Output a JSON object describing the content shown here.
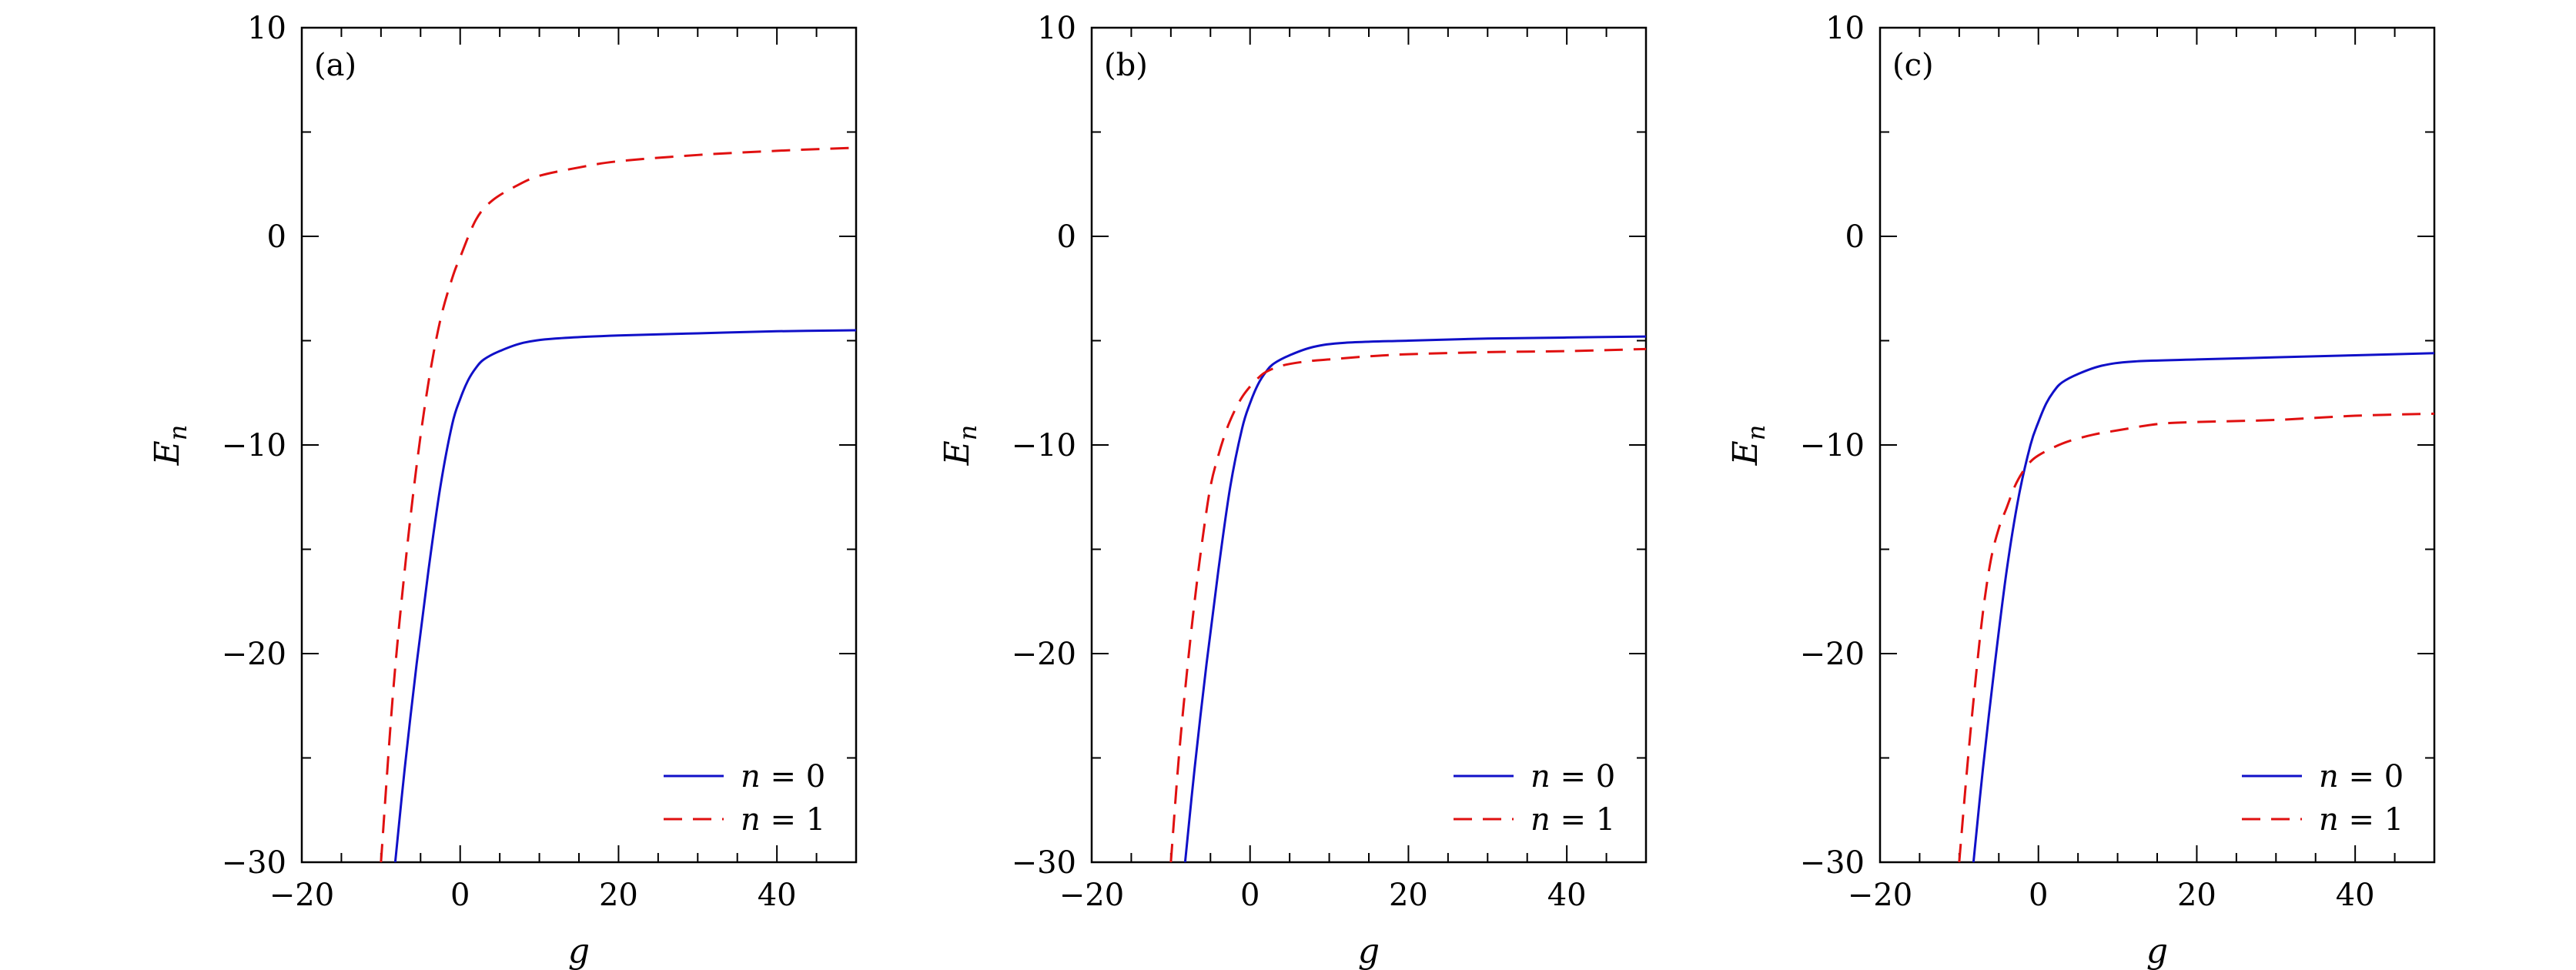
{
  "chart_data": [
    {
      "type": "line",
      "panel_label": "(a)",
      "xlabel": "g",
      "ylabel": "E",
      "ylabel_sub": "n",
      "xlim": [
        -20,
        50
      ],
      "ylim": [
        -30,
        10
      ],
      "xticks": [
        -20,
        0,
        20,
        40
      ],
      "xtick_labels": [
        "−20",
        "0",
        "20",
        "40"
      ],
      "yticks": [
        -30,
        -20,
        -10,
        0,
        10
      ],
      "ytick_labels": [
        "−30",
        "−20",
        "−10",
        "0",
        "10"
      ],
      "legend_position": "bottom-right",
      "series": [
        {
          "label_var": "n",
          "label_eq": " = 0",
          "style": "solid",
          "color": "#1010c8",
          "x": [
            -8.2,
            -7,
            -5.5,
            -4,
            -2.5,
            -1,
            0,
            1,
            2,
            3,
            5,
            8,
            12,
            20,
            30,
            40,
            50
          ],
          "y": [
            -30,
            -25.5,
            -20.5,
            -16,
            -12,
            -9,
            -7.8,
            -6.9,
            -6.3,
            -5.9,
            -5.5,
            -5.1,
            -4.9,
            -4.75,
            -4.65,
            -4.55,
            -4.5
          ]
        },
        {
          "label_var": "n",
          "label_eq": " = 1",
          "style": "dashed",
          "color": "#e01010",
          "x": [
            -10,
            -8.5,
            -7,
            -5.5,
            -4,
            -2.5,
            -1,
            0,
            2,
            4,
            7,
            10,
            15,
            20,
            30,
            40,
            50
          ],
          "y": [
            -30,
            -22,
            -16,
            -11,
            -7,
            -4,
            -2,
            -1,
            0.8,
            1.7,
            2.4,
            2.9,
            3.3,
            3.6,
            3.9,
            4.1,
            4.25
          ]
        }
      ]
    },
    {
      "type": "line",
      "panel_label": "(b)",
      "xlabel": "g",
      "ylabel": "E",
      "ylabel_sub": "n",
      "xlim": [
        -20,
        50
      ],
      "ylim": [
        -30,
        10
      ],
      "xticks": [
        -20,
        0,
        20,
        40
      ],
      "xtick_labels": [
        "−20",
        "0",
        "20",
        "40"
      ],
      "yticks": [
        -30,
        -20,
        -10,
        0,
        10
      ],
      "ytick_labels": [
        "−30",
        "−20",
        "−10",
        "0",
        "10"
      ],
      "legend_position": "bottom-right",
      "series": [
        {
          "label_var": "n",
          "label_eq": " = 0",
          "style": "solid",
          "color": "#1010c8",
          "x": [
            -8.2,
            -7,
            -5.5,
            -4,
            -2.5,
            -1,
            0,
            1,
            2,
            3,
            5,
            8,
            12,
            20,
            30,
            40,
            50
          ],
          "y": [
            -30,
            -25.5,
            -20.5,
            -16,
            -12,
            -9.2,
            -8,
            -7.1,
            -6.5,
            -6.1,
            -5.7,
            -5.3,
            -5.1,
            -5.0,
            -4.9,
            -4.85,
            -4.8
          ]
        },
        {
          "label_var": "n",
          "label_eq": " = 1",
          "style": "dashed",
          "color": "#e01010",
          "x": [
            -10,
            -9,
            -8,
            -7,
            -6,
            -5,
            -4,
            -3,
            -2,
            -1,
            0,
            1,
            2,
            4,
            7,
            10,
            15,
            20,
            30,
            40,
            50
          ],
          "y": [
            -30,
            -25,
            -21,
            -17.5,
            -14.5,
            -12,
            -10.5,
            -9.3,
            -8.4,
            -7.7,
            -7.2,
            -6.8,
            -6.5,
            -6.2,
            -6.0,
            -5.9,
            -5.75,
            -5.65,
            -5.55,
            -5.5,
            -5.4
          ]
        }
      ]
    },
    {
      "type": "line",
      "panel_label": "(c)",
      "xlabel": "g",
      "ylabel": "E",
      "ylabel_sub": "n",
      "xlim": [
        -20,
        50
      ],
      "ylim": [
        -30,
        10
      ],
      "xticks": [
        -20,
        0,
        20,
        40
      ],
      "xtick_labels": [
        "−20",
        "0",
        "20",
        "40"
      ],
      "yticks": [
        -30,
        -20,
        -10,
        0,
        10
      ],
      "ytick_labels": [
        "−30",
        "−20",
        "−10",
        "0",
        "10"
      ],
      "legend_position": "bottom-right",
      "series": [
        {
          "label_var": "n",
          "label_eq": " = 0",
          "style": "solid",
          "color": "#1010c8",
          "x": [
            -8.2,
            -7,
            -5.5,
            -4,
            -2.5,
            -1,
            0,
            1,
            2,
            3,
            5,
            8,
            12,
            20,
            30,
            40,
            50
          ],
          "y": [
            -30,
            -25.5,
            -20.5,
            -16,
            -12.5,
            -10,
            -8.9,
            -8.0,
            -7.4,
            -7.0,
            -6.6,
            -6.2,
            -6.0,
            -5.9,
            -5.8,
            -5.7,
            -5.6
          ]
        },
        {
          "label_var": "n",
          "label_eq": " = 1",
          "style": "dashed",
          "color": "#e01010",
          "x": [
            -10,
            -9,
            -8,
            -7,
            -6,
            -5,
            -4,
            -3,
            -2,
            -1,
            0,
            2,
            4,
            7,
            10,
            15,
            20,
            30,
            40,
            50
          ],
          "y": [
            -30,
            -25.5,
            -21.5,
            -18,
            -15.5,
            -14,
            -13,
            -12,
            -11.3,
            -10.8,
            -10.5,
            -10.1,
            -9.8,
            -9.5,
            -9.3,
            -9.0,
            -8.9,
            -8.8,
            -8.6,
            -8.5
          ]
        }
      ]
    }
  ]
}
